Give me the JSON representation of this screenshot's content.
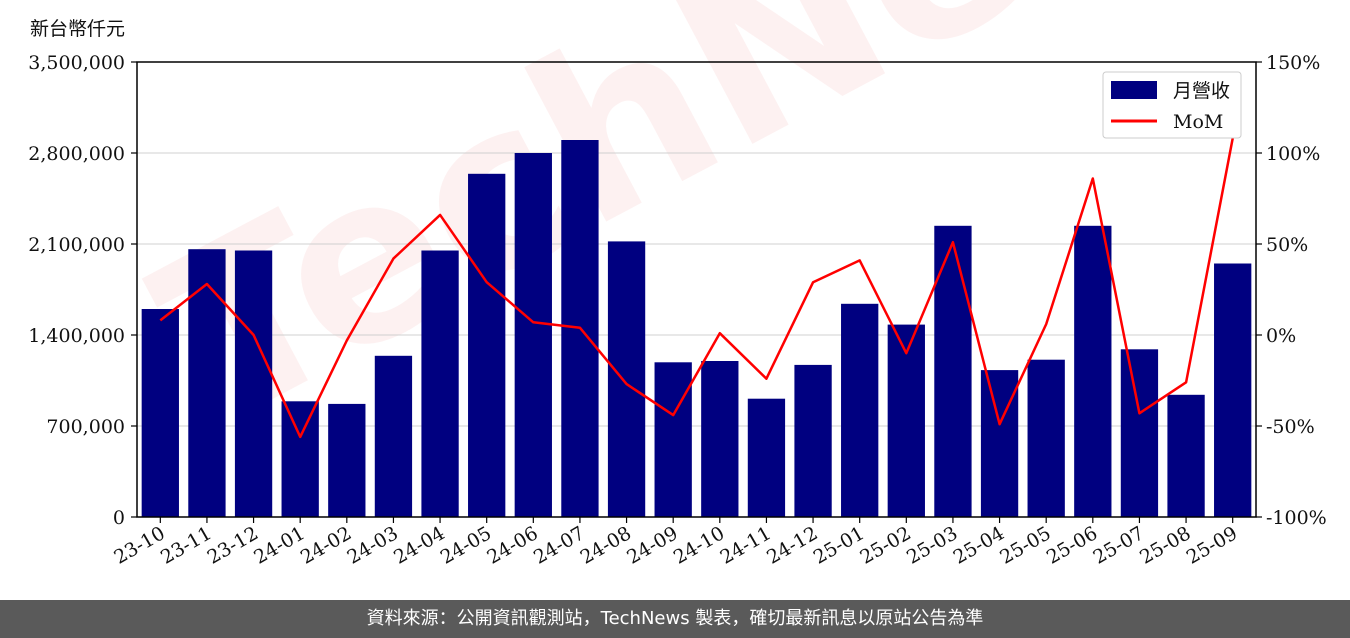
{
  "y_unit_label": "新台幣仟元",
  "watermark": "TechNews",
  "footer": "資料來源：公開資訊觀測站，TechNews 製表，確切最新訊息以原站公告為準",
  "chart_data": {
    "type": "bar",
    "categories": [
      "23-10",
      "23-11",
      "23-12",
      "24-01",
      "24-02",
      "24-03",
      "24-04",
      "24-05",
      "24-06",
      "24-07",
      "24-08",
      "24-09",
      "24-10",
      "24-11",
      "24-12",
      "25-01",
      "25-02",
      "25-03",
      "25-04",
      "25-05",
      "25-06",
      "25-07",
      "25-08",
      "25-09"
    ],
    "series": [
      {
        "name": "月營收",
        "type": "bar",
        "axis": "left",
        "color": "#000080",
        "values": [
          1600000,
          2060000,
          2050000,
          890000,
          870000,
          1240000,
          2050000,
          2640000,
          2800000,
          2900000,
          2120000,
          1190000,
          1200000,
          910000,
          1170000,
          1640000,
          1480000,
          2240000,
          1130000,
          1210000,
          2240000,
          1290000,
          940000,
          1950000
        ]
      },
      {
        "name": "MoM",
        "type": "line",
        "axis": "right",
        "color": "#ff0000",
        "values": [
          8,
          28,
          0,
          -56,
          -3,
          42,
          66,
          29,
          7,
          4,
          -27,
          -44,
          1,
          -24,
          29,
          41,
          -10,
          51,
          -49,
          6,
          86,
          -43,
          -26,
          108
        ]
      }
    ],
    "y_left": {
      "ylim": [
        0,
        3500000
      ],
      "ticks": [
        0,
        700000,
        1400000,
        2100000,
        2800000,
        3500000
      ],
      "tick_labels": [
        "0",
        "700,000",
        "1,400,000",
        "2,100,000",
        "2,800,000",
        "3,500,000"
      ]
    },
    "y_right": {
      "ylim": [
        -100,
        150
      ],
      "ticks": [
        -100,
        -50,
        0,
        50,
        100,
        150
      ],
      "tick_labels": [
        "-100%",
        "-50%",
        "0%",
        "50%",
        "100%",
        "150%"
      ]
    },
    "grid": "horizontal",
    "legend_position": "top-right"
  }
}
